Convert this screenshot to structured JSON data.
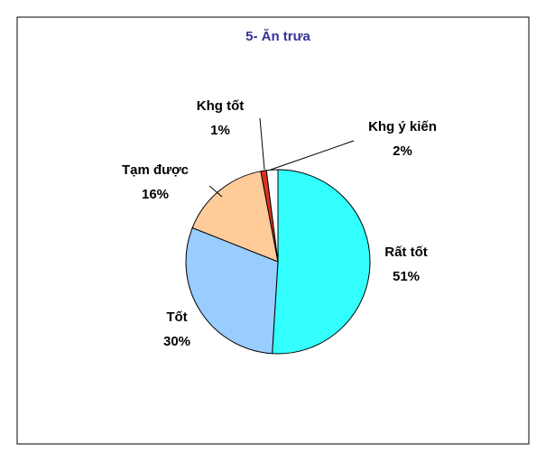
{
  "chart_data": {
    "type": "pie",
    "title": "5- Ăn trưa",
    "categories": [
      "Rất tốt",
      "Tốt",
      "Tạm được",
      "Khg tốt",
      "Khg ý kiến"
    ],
    "values": [
      51,
      30,
      16,
      1,
      2
    ],
    "value_labels": [
      "51%",
      "30%",
      "16%",
      "1%",
      "2%"
    ],
    "colors": [
      "#33ffff",
      "#99ccff",
      "#ffcc99",
      "#e0301e",
      "#ffffff"
    ]
  }
}
